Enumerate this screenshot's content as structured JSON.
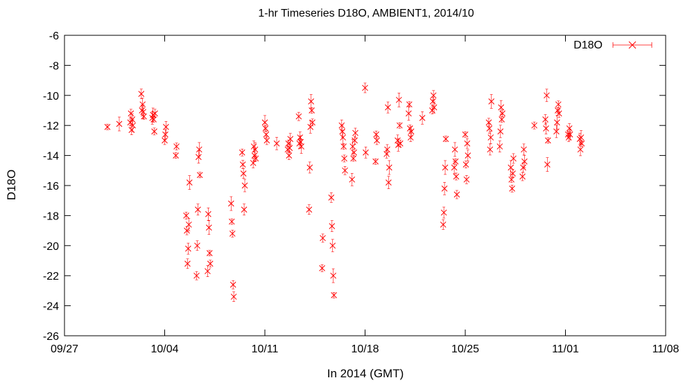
{
  "chart_data": {
    "type": "scatter",
    "title": "1-hr Timeseries D18O, AMBIENT1, 2014/10",
    "xlabel": "In 2014 (GMT)",
    "ylabel": "D18O",
    "x_ticks": [
      "09/27",
      "10/04",
      "10/11",
      "10/18",
      "10/25",
      "11/01",
      "11/08"
    ],
    "y_ticks": [
      "-6",
      "-8",
      "-10",
      "-12",
      "-14",
      "-16",
      "-18",
      "-20",
      "-22",
      "-24",
      "-26"
    ],
    "xlim": [
      "2014-09-27",
      "2014-11-08"
    ],
    "ylim": [
      -26,
      -6
    ],
    "grid": false,
    "legend": "top-right",
    "colors": {
      "series": "#ff0000",
      "axis": "#000000",
      "background": "#ffffff"
    },
    "series": [
      {
        "name": "D18O",
        "marker": "x",
        "error_bars": true,
        "points": [
          [
            "2014-09-30",
            -12.1
          ],
          [
            "2014-09-30",
            -11.9
          ],
          [
            "2014-10-01",
            -12.0
          ],
          [
            "2014-10-01",
            -11.6
          ],
          [
            "2014-10-01",
            -12.3
          ],
          [
            "2014-10-01",
            -11.2
          ],
          [
            "2014-10-01",
            -11.8
          ],
          [
            "2014-10-02",
            -11.4
          ],
          [
            "2014-10-02",
            -11.1
          ],
          [
            "2014-10-02",
            -10.6
          ],
          [
            "2014-10-02",
            -11.0
          ],
          [
            "2014-10-02",
            -9.9
          ],
          [
            "2014-10-03",
            -11.2
          ],
          [
            "2014-10-03",
            -12.4
          ],
          [
            "2014-10-03",
            -11.6
          ],
          [
            "2014-10-03",
            -11.3
          ],
          [
            "2014-10-03",
            -11.5
          ],
          [
            "2014-10-04",
            -12.1
          ],
          [
            "2014-10-04",
            -12.6
          ],
          [
            "2014-10-04",
            -13.0
          ],
          [
            "2014-10-04",
            -13.4
          ],
          [
            "2014-10-04",
            -14.0
          ],
          [
            "2014-10-05",
            -15.8
          ],
          [
            "2014-10-05",
            -18.6
          ],
          [
            "2014-10-05",
            -20.2
          ],
          [
            "2014-10-05",
            -21.2
          ],
          [
            "2014-10-05",
            -19.0
          ],
          [
            "2014-10-05",
            -18.0
          ],
          [
            "2014-10-06",
            -15.3
          ],
          [
            "2014-10-06",
            -13.6
          ],
          [
            "2014-10-06",
            -14.1
          ],
          [
            "2014-10-06",
            -17.6
          ],
          [
            "2014-10-06",
            -20.0
          ],
          [
            "2014-10-06",
            -22.0
          ],
          [
            "2014-10-07",
            -21.2
          ],
          [
            "2014-10-07",
            -20.5
          ],
          [
            "2014-10-07",
            -18.8
          ],
          [
            "2014-10-07",
            -17.9
          ],
          [
            "2014-10-07",
            -21.7
          ],
          [
            "2014-10-08",
            -23.4
          ],
          [
            "2014-10-08",
            -22.6
          ],
          [
            "2014-10-08",
            -19.2
          ],
          [
            "2014-10-08",
            -18.4
          ],
          [
            "2014-10-08",
            -17.2
          ],
          [
            "2014-10-09",
            -16.0
          ],
          [
            "2014-10-09",
            -17.6
          ],
          [
            "2014-10-09",
            -15.2
          ],
          [
            "2014-10-09",
            -14.6
          ],
          [
            "2014-10-09",
            -13.8
          ],
          [
            "2014-10-10",
            -14.2
          ],
          [
            "2014-10-10",
            -13.6
          ],
          [
            "2014-10-10",
            -14.0
          ],
          [
            "2014-10-10",
            -13.4
          ],
          [
            "2014-10-10",
            -14.5
          ],
          [
            "2014-10-11",
            -13.0
          ],
          [
            "2014-10-11",
            -12.6
          ],
          [
            "2014-10-11",
            -12.2
          ],
          [
            "2014-10-11",
            -11.8
          ],
          [
            "2014-10-11",
            -13.2
          ],
          [
            "2014-10-12",
            -12.9
          ],
          [
            "2014-10-12",
            -13.5
          ],
          [
            "2014-10-12",
            -14.0
          ],
          [
            "2014-10-12",
            -13.2
          ],
          [
            "2014-10-12",
            -13.6
          ],
          [
            "2014-10-13",
            -13.4
          ],
          [
            "2014-10-13",
            -13.1
          ],
          [
            "2014-10-13",
            -12.8
          ],
          [
            "2014-10-13",
            -13.2
          ],
          [
            "2014-10-13",
            -11.4
          ],
          [
            "2014-10-14",
            -11.8
          ],
          [
            "2014-10-14",
            -11.0
          ],
          [
            "2014-10-14",
            -10.4
          ],
          [
            "2014-10-14",
            -12.1
          ],
          [
            "2014-10-14",
            -14.8
          ],
          [
            "2014-10-14",
            -17.6
          ],
          [
            "2014-10-15",
            -19.5
          ],
          [
            "2014-10-15",
            -21.5
          ],
          [
            "2014-10-15",
            -23.3
          ],
          [
            "2014-10-15",
            -22.0
          ],
          [
            "2014-10-15",
            -20.0
          ],
          [
            "2014-10-15",
            -18.7
          ],
          [
            "2014-10-15",
            -16.8
          ],
          [
            "2014-10-16",
            -15.0
          ],
          [
            "2014-10-16",
            -14.2
          ],
          [
            "2014-10-16",
            -13.4
          ],
          [
            "2014-10-16",
            -12.8
          ],
          [
            "2014-10-16",
            -12.4
          ],
          [
            "2014-10-16",
            -12.0
          ],
          [
            "2014-10-17",
            -12.5
          ],
          [
            "2014-10-17",
            -13.0
          ],
          [
            "2014-10-17",
            -13.8
          ],
          [
            "2014-10-17",
            -14.2
          ],
          [
            "2014-10-17",
            -13.4
          ],
          [
            "2014-10-17",
            -15.6
          ],
          [
            "2014-10-18",
            -13.8
          ],
          [
            "2014-10-18",
            -9.5
          ],
          [
            "2014-10-18",
            -13.0
          ],
          [
            "2014-10-18",
            -12.6
          ],
          [
            "2014-10-18",
            -14.4
          ],
          [
            "2014-10-19",
            -14.8
          ],
          [
            "2014-10-19",
            -15.8
          ],
          [
            "2014-10-19",
            -10.8
          ],
          [
            "2014-10-19",
            -13.6
          ],
          [
            "2014-10-19",
            -13.9
          ],
          [
            "2014-10-20",
            -13.2
          ],
          [
            "2014-10-20",
            -12.0
          ],
          [
            "2014-10-20",
            -10.3
          ],
          [
            "2014-10-20",
            -13.3
          ],
          [
            "2014-10-20",
            -13.0
          ],
          [
            "2014-10-21",
            -12.4
          ],
          [
            "2014-10-21",
            -12.8
          ],
          [
            "2014-10-21",
            -12.2
          ],
          [
            "2014-10-21",
            -10.6
          ],
          [
            "2014-10-21",
            -11.2
          ],
          [
            "2014-10-22",
            -11.5
          ],
          [
            "2014-10-22",
            -10.8
          ],
          [
            "2014-10-22",
            -10.0
          ],
          [
            "2014-10-22",
            -10.4
          ],
          [
            "2014-10-22",
            -11.0
          ],
          [
            "2014-10-23",
            -12.9
          ],
          [
            "2014-10-23",
            -14.8
          ],
          [
            "2014-10-23",
            -16.2
          ],
          [
            "2014-10-23",
            -17.8
          ],
          [
            "2014-10-23",
            -18.6
          ],
          [
            "2014-10-24",
            -16.6
          ],
          [
            "2014-10-24",
            -15.4
          ],
          [
            "2014-10-24",
            -14.4
          ],
          [
            "2014-10-24",
            -13.6
          ],
          [
            "2014-10-24",
            -14.8
          ],
          [
            "2014-10-25",
            -14.0
          ],
          [
            "2014-10-25",
            -13.2
          ],
          [
            "2014-10-25",
            -15.6
          ],
          [
            "2014-10-25",
            -14.6
          ],
          [
            "2014-10-25",
            -12.6
          ],
          [
            "2014-10-26",
            -10.4
          ],
          [
            "2014-10-26",
            -12.8
          ],
          [
            "2014-10-26",
            -13.6
          ],
          [
            "2014-10-26",
            -12.2
          ],
          [
            "2014-10-26",
            -11.8
          ],
          [
            "2014-10-27",
            -11.2
          ],
          [
            "2014-10-27",
            -11.6
          ],
          [
            "2014-10-27",
            -10.8
          ],
          [
            "2014-10-27",
            -12.4
          ],
          [
            "2014-10-27",
            -13.4
          ],
          [
            "2014-10-28",
            -14.2
          ],
          [
            "2014-10-28",
            -15.2
          ],
          [
            "2014-10-28",
            -16.2
          ],
          [
            "2014-10-28",
            -15.6
          ],
          [
            "2014-10-28",
            -14.8
          ],
          [
            "2014-10-29",
            -14.4
          ],
          [
            "2014-10-29",
            -13.6
          ],
          [
            "2014-10-29",
            -14.8
          ],
          [
            "2014-10-29",
            -15.4
          ],
          [
            "2014-10-29",
            -12.0
          ],
          [
            "2014-10-30",
            -13.0
          ],
          [
            "2014-10-30",
            -14.6
          ],
          [
            "2014-10-30",
            -10.0
          ],
          [
            "2014-10-30",
            -12.2
          ],
          [
            "2014-10-30",
            -11.6
          ],
          [
            "2014-10-31",
            -11.2
          ],
          [
            "2014-10-31",
            -10.6
          ],
          [
            "2014-10-31",
            -11.0
          ],
          [
            "2014-10-31",
            -11.8
          ],
          [
            "2014-10-31",
            -12.4
          ],
          [
            "2014-11-01",
            -12.6
          ],
          [
            "2014-11-01",
            -12.2
          ],
          [
            "2014-11-01",
            -12.8
          ],
          [
            "2014-11-01",
            -12.6
          ],
          [
            "2014-11-02",
            -13.2
          ],
          [
            "2014-11-02",
            -12.8
          ],
          [
            "2014-11-02",
            -13.6
          ],
          [
            "2014-11-02",
            -12.9
          ]
        ]
      }
    ]
  }
}
